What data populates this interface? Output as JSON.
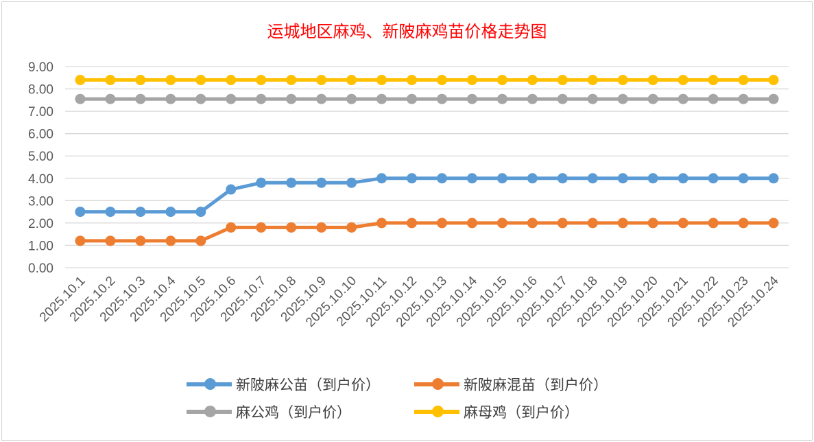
{
  "chart_data": {
    "type": "line",
    "title": "运城地区麻鸡、新陂麻鸡苗价格走势图",
    "categories": [
      "2025.10.1",
      "2025.10.2",
      "2025.10.3",
      "2025.10.4",
      "2025.10.5",
      "2025.10.6",
      "2025.10.7",
      "2025.10.8",
      "2025.10.9",
      "2025.10.10",
      "2025.10.11",
      "2025.10.12",
      "2025.10.13",
      "2025.10.14",
      "2025.10.15",
      "2025.10.16",
      "2025.10.17",
      "2025.10.18",
      "2025.10.19",
      "2025.10.20",
      "2025.10.21",
      "2025.10.22",
      "2025.10.23",
      "2025.10.24"
    ],
    "ylim": [
      0,
      9
    ],
    "yticks": [
      "0.00",
      "1.00",
      "2.00",
      "3.00",
      "4.00",
      "5.00",
      "6.00",
      "7.00",
      "8.00",
      "9.00"
    ],
    "grid": true,
    "legend_position": "bottom",
    "series": [
      {
        "name": "新陂麻公苗（到户价）",
        "color": "#5b9bd5",
        "values": [
          2.5,
          2.5,
          2.5,
          2.5,
          2.5,
          3.5,
          3.8,
          3.8,
          3.8,
          3.8,
          4,
          4,
          4,
          4,
          4,
          4,
          4,
          4,
          4,
          4,
          4,
          4,
          4,
          4
        ]
      },
      {
        "name": "新陂麻混苗（到户价）",
        "color": "#ed7d31",
        "values": [
          1.2,
          1.2,
          1.2,
          1.2,
          1.2,
          1.8,
          1.8,
          1.8,
          1.8,
          1.8,
          2,
          2,
          2,
          2,
          2,
          2,
          2,
          2,
          2,
          2,
          2,
          2,
          2,
          2
        ]
      },
      {
        "name": "麻公鸡（到户价）",
        "color": "#a5a5a5",
        "values": [
          7.55,
          7.55,
          7.55,
          7.55,
          7.55,
          7.55,
          7.55,
          7.55,
          7.55,
          7.55,
          7.55,
          7.55,
          7.55,
          7.55,
          7.55,
          7.55,
          7.55,
          7.55,
          7.55,
          7.55,
          7.55,
          7.55,
          7.55,
          7.55
        ]
      },
      {
        "name": "麻母鸡（到户价）",
        "color": "#ffc000",
        "values": [
          8.4,
          8.4,
          8.4,
          8.4,
          8.4,
          8.4,
          8.4,
          8.4,
          8.4,
          8.4,
          8.4,
          8.4,
          8.4,
          8.4,
          8.4,
          8.4,
          8.4,
          8.4,
          8.4,
          8.4,
          8.4,
          8.4,
          8.4,
          8.4
        ]
      }
    ]
  }
}
